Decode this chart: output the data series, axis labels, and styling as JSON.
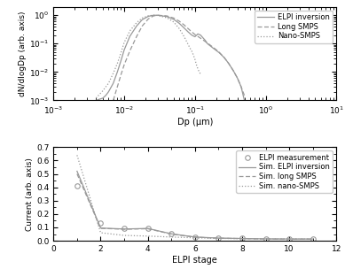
{
  "top_plot": {
    "ylabel": "dN/dlogDp (arb. axis)",
    "xlabel": "Dp (μm)",
    "xlim_log": [
      -3,
      1
    ],
    "ylim_log": [
      -3,
      0.3
    ],
    "legend": [
      "ELPI inversion",
      "Long SMPS",
      "Nano-SMPS"
    ]
  },
  "bottom_plot": {
    "ylabel": "Current (arb. axis)",
    "xlabel": "ELPI stage",
    "xlim": [
      0,
      12
    ],
    "ylim": [
      0,
      0.7
    ],
    "yticks": [
      0.0,
      0.1,
      0.2,
      0.3,
      0.4,
      0.5,
      0.6,
      0.7
    ],
    "xticks": [
      0,
      2,
      4,
      6,
      8,
      10,
      12
    ],
    "legend": [
      "ELPI measurement",
      "Sim. ELPI inversion",
      "Sim. long SMPS",
      "Sim. nano-SMPS"
    ]
  },
  "elpi_inversion_x": [
    0.004,
    0.005,
    0.0055,
    0.006,
    0.007,
    0.008,
    0.009,
    0.01,
    0.012,
    0.015,
    0.018,
    0.022,
    0.026,
    0.03,
    0.04,
    0.05,
    0.06,
    0.07,
    0.08,
    0.09,
    0.1,
    0.11,
    0.12,
    0.14,
    0.15,
    0.18,
    0.22,
    0.26,
    0.3,
    0.35,
    0.4,
    0.45,
    0.5
  ],
  "elpi_inversion_y": [
    0.001,
    0.0012,
    0.0015,
    0.002,
    0.004,
    0.01,
    0.025,
    0.06,
    0.18,
    0.42,
    0.7,
    0.92,
    1.0,
    1.0,
    0.9,
    0.72,
    0.52,
    0.36,
    0.26,
    0.2,
    0.175,
    0.22,
    0.2,
    0.13,
    0.1,
    0.07,
    0.048,
    0.032,
    0.02,
    0.011,
    0.006,
    0.003,
    0.001
  ],
  "long_smps_x": [
    0.007,
    0.008,
    0.009,
    0.01,
    0.012,
    0.015,
    0.018,
    0.022,
    0.026,
    0.03,
    0.04,
    0.05,
    0.06,
    0.07,
    0.08,
    0.09,
    0.1,
    0.12,
    0.15,
    0.18,
    0.22,
    0.26,
    0.3,
    0.35,
    0.4,
    0.45,
    0.5
  ],
  "long_smps_y": [
    0.001,
    0.003,
    0.008,
    0.018,
    0.055,
    0.18,
    0.42,
    0.75,
    0.95,
    1.0,
    0.95,
    0.8,
    0.62,
    0.46,
    0.34,
    0.26,
    0.21,
    0.155,
    0.105,
    0.075,
    0.05,
    0.032,
    0.02,
    0.011,
    0.006,
    0.003,
    0.0015
  ],
  "nano_smps_x": [
    0.004,
    0.005,
    0.006,
    0.007,
    0.008,
    0.009,
    0.01,
    0.012,
    0.015,
    0.018,
    0.022,
    0.026,
    0.03,
    0.04,
    0.05,
    0.06,
    0.07,
    0.08,
    0.085,
    0.09,
    0.095,
    0.1,
    0.105,
    0.11,
    0.115,
    0.12
  ],
  "nano_smps_y": [
    0.0012,
    0.0022,
    0.004,
    0.009,
    0.02,
    0.048,
    0.11,
    0.28,
    0.55,
    0.8,
    0.96,
    1.0,
    0.98,
    0.82,
    0.58,
    0.34,
    0.18,
    0.095,
    0.07,
    0.055,
    0.04,
    0.028,
    0.018,
    0.013,
    0.01,
    0.0085
  ],
  "elpi_meas_x": [
    1,
    2,
    3,
    4,
    5,
    6,
    7,
    8,
    9,
    10,
    11
  ],
  "elpi_meas_y": [
    0.41,
    0.13,
    0.093,
    0.095,
    0.055,
    0.03,
    0.022,
    0.018,
    0.015,
    0.015,
    0.015
  ],
  "sim_elpi_inv_x": [
    1,
    2,
    3,
    4,
    5,
    6,
    7,
    8,
    9,
    10,
    11
  ],
  "sim_elpi_inv_y": [
    0.52,
    0.095,
    0.088,
    0.092,
    0.052,
    0.028,
    0.02,
    0.017,
    0.014,
    0.013,
    0.013
  ],
  "sim_long_smps_x": [
    1,
    2,
    3,
    4,
    5,
    6,
    7,
    8,
    9,
    10,
    11
  ],
  "sim_long_smps_y": [
    0.5,
    0.093,
    0.086,
    0.09,
    0.05,
    0.027,
    0.019,
    0.016,
    0.013,
    0.012,
    0.012
  ],
  "sim_nano_smps_x": [
    1,
    2,
    3,
    4,
    5,
    6,
    7,
    8,
    9,
    10,
    11
  ],
  "sim_nano_smps_y": [
    0.64,
    0.06,
    0.04,
    0.035,
    0.028,
    0.022,
    0.018,
    0.016,
    0.014,
    0.013,
    0.013
  ],
  "line_color": "#999999",
  "bg_color": "#f0f0f0",
  "axes_bg": "#ffffff"
}
